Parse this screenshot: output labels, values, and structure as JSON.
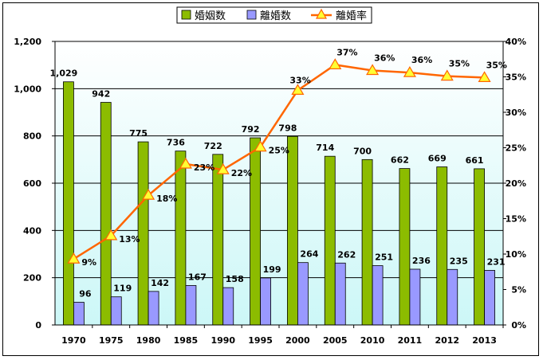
{
  "chart_data": {
    "type": "bar",
    "categories": [
      "1970",
      "1975",
      "1980",
      "1985",
      "1990",
      "1995",
      "2000",
      "2005",
      "2010",
      "2011",
      "2012",
      "2013"
    ],
    "series": [
      {
        "name": "婚姻数",
        "type": "bar",
        "axis": "left",
        "color": "#8cbc00",
        "values": [
          1029,
          942,
          775,
          736,
          722,
          792,
          798,
          714,
          700,
          662,
          669,
          661
        ],
        "labels": [
          "1,029",
          "942",
          "775",
          "736",
          "722",
          "792",
          "798",
          "714",
          "700",
          "662",
          "669",
          "661"
        ]
      },
      {
        "name": "離婚数",
        "type": "bar",
        "axis": "left",
        "color": "#9999ff",
        "values": [
          96,
          119,
          142,
          167,
          158,
          199,
          264,
          262,
          251,
          236,
          235,
          231
        ],
        "labels": [
          "96",
          "119",
          "142",
          "167",
          "158",
          "199",
          "264",
          "262",
          "251",
          "236",
          "235",
          "231"
        ]
      },
      {
        "name": "離婚率",
        "type": "line",
        "axis": "right",
        "color": "#ff6600",
        "values": [
          9.3,
          12.6,
          18.3,
          22.7,
          21.9,
          25.1,
          33.1,
          36.7,
          35.9,
          35.6,
          35.1,
          34.9
        ],
        "labels": [
          "9%",
          "13%",
          "18%",
          "23%",
          "22%",
          "25%",
          "33%",
          "37%",
          "36%",
          "36%",
          "35%",
          "35%"
        ]
      }
    ],
    "y_left": {
      "min": 0,
      "max": 1200,
      "step": 200,
      "tick_labels": [
        "0",
        "200",
        "400",
        "600",
        "800",
        "1,000",
        "1,200"
      ]
    },
    "y_right": {
      "min": 0,
      "max": 40,
      "step": 5,
      "tick_labels": [
        "0%",
        "5%",
        "10%",
        "15%",
        "20%",
        "25%",
        "30%",
        "35%",
        "40%"
      ]
    },
    "legend_position": "top",
    "grid": true,
    "title": "",
    "xlabel": "",
    "ylabel": ""
  }
}
